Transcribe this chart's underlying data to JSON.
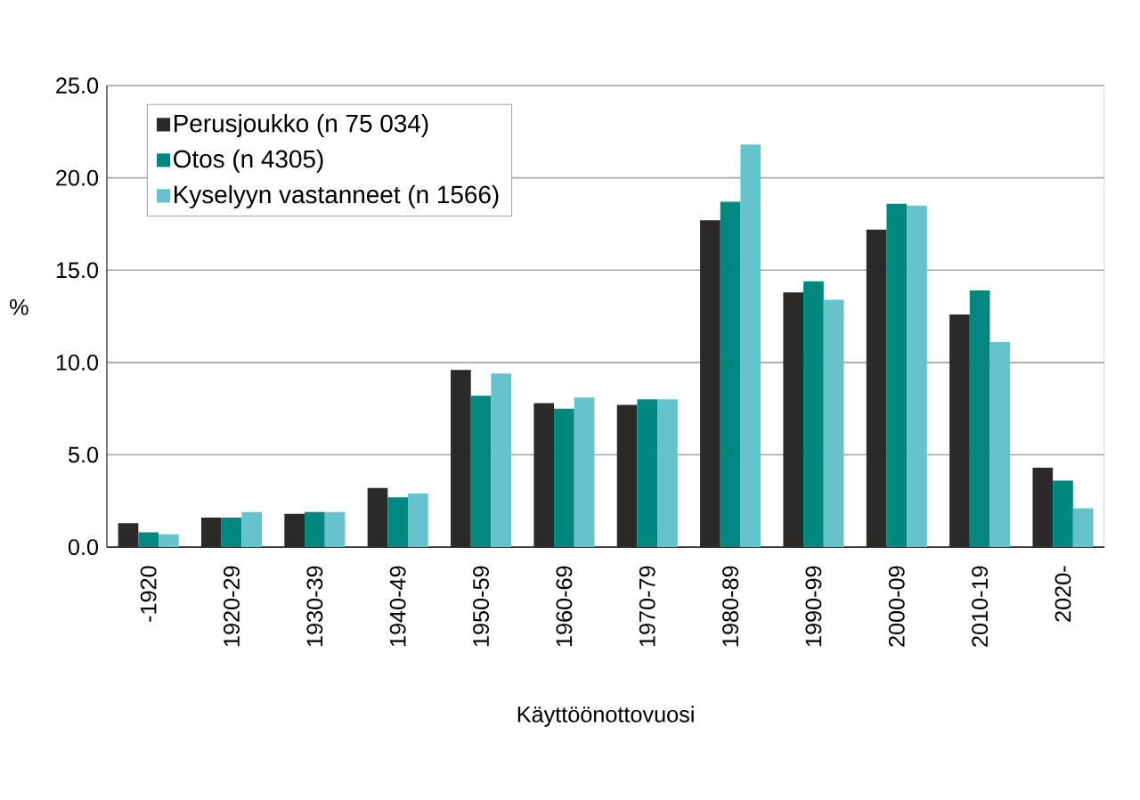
{
  "chart_data": {
    "type": "bar",
    "xlabel": "Käyttöönottovuosi",
    "ylabel": "%",
    "categories": [
      "-1920",
      "1920-29",
      "1930-39",
      "1940-49",
      "1950-59",
      "1960-69",
      "1970-79",
      "1980-89",
      "1990-99",
      "2000-09",
      "2010-19",
      "2020-"
    ],
    "series": [
      {
        "name": "Perusjoukko (n 75 034)",
        "color": "#2b2a29",
        "values": [
          1.3,
          1.6,
          1.8,
          3.2,
          9.6,
          7.8,
          7.7,
          17.7,
          13.8,
          17.2,
          12.6,
          4.3
        ]
      },
      {
        "name": "Otos (n 4305)",
        "color": "#00877f",
        "values": [
          0.8,
          1.6,
          1.9,
          2.7,
          8.2,
          7.5,
          8.0,
          18.7,
          14.4,
          18.6,
          13.9,
          3.6
        ]
      },
      {
        "name": "Kyselyyn vastanneet (n 1566)",
        "color": "#66c2cc",
        "values": [
          0.7,
          1.9,
          1.9,
          2.9,
          9.4,
          8.1,
          8.0,
          21.8,
          13.4,
          18.5,
          11.1,
          2.1
        ]
      }
    ],
    "ylim": [
      0,
      25
    ],
    "yticks": [
      {
        "value": 0,
        "label": "0.0"
      },
      {
        "value": 5,
        "label": "5.0"
      },
      {
        "value": 10,
        "label": "10.0"
      },
      {
        "value": 15,
        "label": "15.0"
      },
      {
        "value": 20,
        "label": "20.0"
      },
      {
        "value": 25,
        "label": "25.0"
      }
    ],
    "grid": "y",
    "legend": "top left"
  }
}
